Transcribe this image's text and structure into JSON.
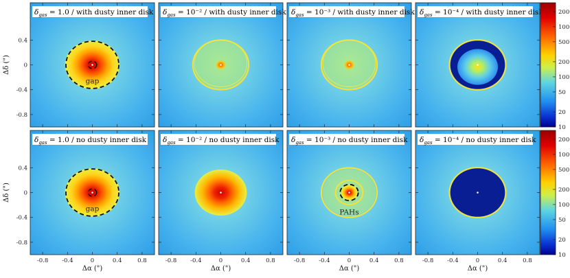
{
  "chart_data": {
    "type": "heatmap",
    "xlabel": "Δα (\")",
    "ylabel": "Δδ (\")",
    "xlim": [
      -1.0,
      1.0
    ],
    "ylim": [
      -1.0,
      1.0
    ],
    "x_ticks": [
      "-0.8",
      "-0.4",
      "0",
      "0.4",
      "0.8"
    ],
    "y_ticks": [
      "0.4",
      "0",
      "-0.4",
      "-0.8"
    ],
    "colorbar": {
      "scale": "log",
      "range": [
        10,
        3000
      ],
      "ticks": [
        "2000",
        "1000",
        "500",
        "200",
        "100",
        "50",
        "20",
        "10"
      ]
    },
    "panels": [
      {
        "row": 0,
        "col": 0,
        "title_prefix": "= 1.0 / with dusty inner disk",
        "disk": "bright",
        "dashed_rings": [
          0.38,
          0.06
        ],
        "annotation": "gap"
      },
      {
        "row": 0,
        "col": 1,
        "title_prefix": "= 10⁻² / with dusty inner disk",
        "disk": "ring",
        "dashed_rings": []
      },
      {
        "row": 0,
        "col": 2,
        "title_prefix": "= 10⁻³ / with dusty inner disk",
        "disk": "ring",
        "dashed_rings": []
      },
      {
        "row": 0,
        "col": 3,
        "title_prefix": "= 10⁻⁴ / with dusty inner disk",
        "disk": "deep_gap_inner",
        "dashed_rings": []
      },
      {
        "row": 1,
        "col": 0,
        "title_prefix": "= 1.0 / no dusty inner disk",
        "disk": "bright",
        "dashed_rings": [
          0.38,
          0.06
        ],
        "annotation": "gap"
      },
      {
        "row": 1,
        "col": 1,
        "title_prefix": "= 10⁻² / no dusty inner disk",
        "disk": "bright_smooth",
        "dashed_rings": []
      },
      {
        "row": 1,
        "col": 2,
        "title_prefix": "= 10⁻³ / no dusty inner disk",
        "disk": "pah_ring",
        "dashed_rings": [
          0.13
        ],
        "annotation": "PAHs"
      },
      {
        "row": 1,
        "col": 3,
        "title_prefix": "= 10⁻⁴ / no dusty inner disk",
        "disk": "deep_gap",
        "dashed_rings": []
      }
    ]
  },
  "title_symbol": "δ",
  "title_subscript": "gas",
  "colors": {
    "background": "#4fb8ee",
    "dark_gap": "#0a1e94",
    "dashed": "#111111"
  }
}
